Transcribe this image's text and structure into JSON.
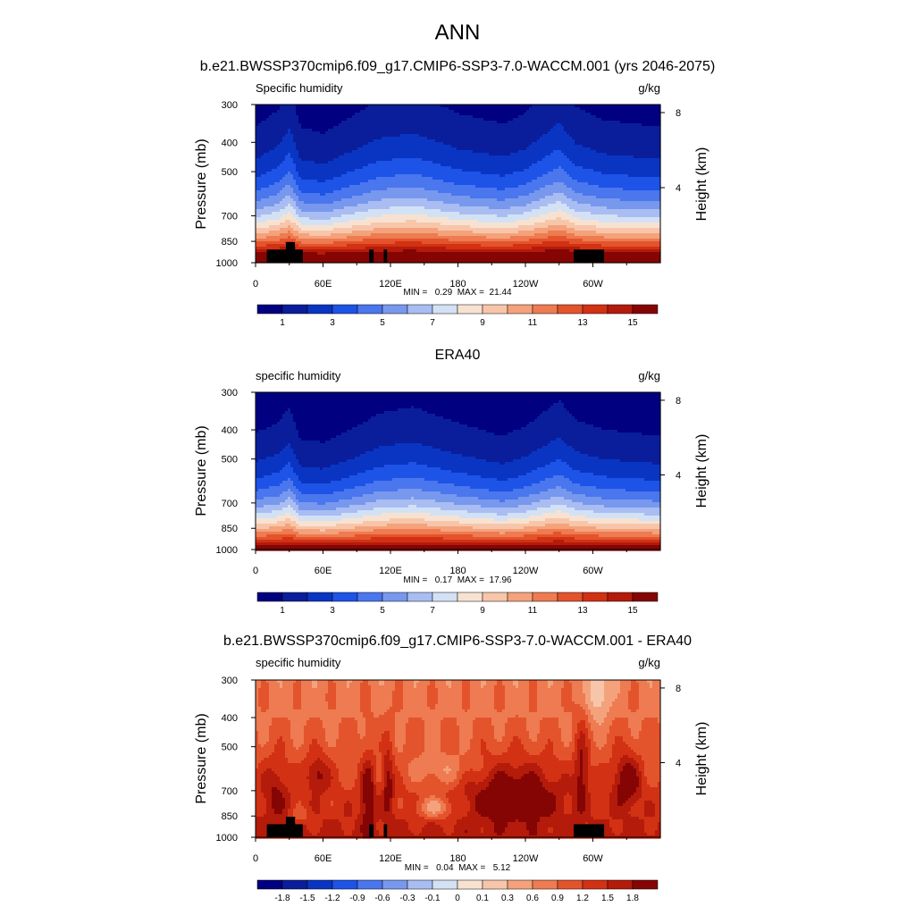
{
  "figure_title": "ANN",
  "colormap_full": [
    "#000080",
    "#0a1e9b",
    "#0a35c3",
    "#1d53e6",
    "#4a76ee",
    "#7898ee",
    "#a9bdf2",
    "#d3e1f5",
    "#f7e2d1",
    "#f7c6aa",
    "#f4a27c",
    "#ee7b51",
    "#e4542c",
    "#d23114",
    "#b41b0a",
    "#850505"
  ],
  "chart_data": [
    {
      "id": "model",
      "type": "heatmap",
      "title": "b.e21.BWSSP370cmip6.f09_g17.CMIP6-SSP3-7.0-WACCM.001 (yrs 2046-2075)",
      "left_label": "Specific humidity",
      "units": "g/kg",
      "ylabel": "Pressure (mb)",
      "y2label": "Height (km)",
      "yticks": [
        "300",
        "400",
        "500",
        "700",
        "850",
        "1000"
      ],
      "ytick_values": [
        300,
        400,
        500,
        700,
        850,
        1000
      ],
      "y2ticks": [
        "8",
        "4"
      ],
      "y2tick_values": [
        8,
        4
      ],
      "xticks": [
        "0",
        "60E",
        "120E",
        "180",
        "120W",
        "60W"
      ],
      "xtick_values": [
        0,
        60,
        120,
        180,
        240,
        300
      ],
      "xlim": [
        0,
        360
      ],
      "ylim": [
        1000,
        300
      ],
      "stats": "MIN =   0.29  MAX =  21.44",
      "min": 0.29,
      "max": 21.44,
      "levels": [
        0,
        1,
        2,
        3,
        4,
        5,
        6,
        7,
        8,
        9,
        10,
        11,
        12,
        13,
        14,
        15,
        16
      ],
      "colorbar_labels": [
        "1",
        "3",
        "5",
        "7",
        "9",
        "11",
        "13",
        "15"
      ],
      "colorbar_label_positions": [
        1,
        3,
        5,
        7,
        9,
        11,
        13,
        15
      ],
      "height_profile": [
        [
          0,
          4.0
        ],
        [
          20,
          4.5
        ],
        [
          30,
          5.2
        ],
        [
          40,
          4.0
        ],
        [
          60,
          3.8
        ],
        [
          90,
          4.4
        ],
        [
          110,
          4.8
        ],
        [
          140,
          5.0
        ],
        [
          180,
          4.4
        ],
        [
          220,
          4.1
        ],
        [
          240,
          4.4
        ],
        [
          270,
          5.4
        ],
        [
          285,
          4.6
        ],
        [
          310,
          4.2
        ],
        [
          360,
          4.0
        ]
      ],
      "terrain": [
        {
          "lon0": 10,
          "lon1": 42,
          "p": 905
        },
        {
          "lon0": 27,
          "lon1": 35,
          "p": 855
        },
        {
          "lon0": 101,
          "lon1": 105,
          "p": 905
        },
        {
          "lon0": 114,
          "lon1": 117,
          "p": 905
        },
        {
          "lon0": 283,
          "lon1": 310,
          "p": 905
        }
      ]
    },
    {
      "id": "obs",
      "type": "heatmap",
      "title": "ERA40",
      "left_label": "specific humidity",
      "units": "g/kg",
      "ylabel": "Pressure (mb)",
      "y2label": "Height (km)",
      "yticks": [
        "300",
        "400",
        "500",
        "700",
        "850",
        "1000"
      ],
      "ytick_values": [
        300,
        400,
        500,
        700,
        850,
        1000
      ],
      "y2ticks": [
        "8",
        "4"
      ],
      "y2tick_values": [
        8,
        4
      ],
      "xticks": [
        "0",
        "60E",
        "120E",
        "180",
        "120W",
        "60W"
      ],
      "xtick_values": [
        0,
        60,
        120,
        180,
        240,
        300
      ],
      "xlim": [
        0,
        360
      ],
      "ylim": [
        1000,
        300
      ],
      "stats": "MIN =   0.17  MAX =  17.96",
      "min": 0.17,
      "max": 17.96,
      "levels": [
        0,
        1,
        2,
        3,
        4,
        5,
        6,
        7,
        8,
        9,
        10,
        11,
        12,
        13,
        14,
        15,
        16
      ],
      "colorbar_labels": [
        "1",
        "3",
        "5",
        "7",
        "9",
        "11",
        "13",
        "15"
      ],
      "colorbar_label_positions": [
        1,
        3,
        5,
        7,
        9,
        11,
        13,
        15
      ],
      "height_profile": [
        [
          0,
          3.6
        ],
        [
          20,
          3.9
        ],
        [
          30,
          4.4
        ],
        [
          40,
          3.4
        ],
        [
          60,
          3.3
        ],
        [
          90,
          3.8
        ],
        [
          110,
          4.2
        ],
        [
          140,
          4.4
        ],
        [
          180,
          3.9
        ],
        [
          220,
          3.5
        ],
        [
          240,
          3.8
        ],
        [
          270,
          4.6
        ],
        [
          285,
          4.0
        ],
        [
          310,
          3.7
        ],
        [
          360,
          3.5
        ]
      ],
      "terrain": []
    },
    {
      "id": "diff",
      "type": "heatmap",
      "title": "b.e21.BWSSP370cmip6.f09_g17.CMIP6-SSP3-7.0-WACCM.001 - ERA40",
      "left_label": "specific humidity",
      "units": "g/kg",
      "ylabel": "Pressure (mb)",
      "y2label": "Height (km)",
      "yticks": [
        "300",
        "400",
        "500",
        "700",
        "850",
        "1000"
      ],
      "ytick_values": [
        300,
        400,
        500,
        700,
        850,
        1000
      ],
      "y2ticks": [
        "8",
        "4"
      ],
      "y2tick_values": [
        8,
        4
      ],
      "xticks": [
        "0",
        "60E",
        "120E",
        "180",
        "120W",
        "60W"
      ],
      "xtick_values": [
        0,
        60,
        120,
        180,
        240,
        300
      ],
      "xlim": [
        0,
        360
      ],
      "ylim": [
        1000,
        300
      ],
      "stats": "MIN =   0.04  MAX =   5.12",
      "min": 0.04,
      "max": 5.12,
      "levels": [
        -2.1,
        -1.8,
        -1.5,
        -1.2,
        -0.9,
        -0.6,
        -0.3,
        -0.1,
        0,
        0.1,
        0.3,
        0.6,
        0.9,
        1.2,
        1.5,
        1.8,
        2.1
      ],
      "colorbar_labels": [
        "-1.8",
        "-1.5",
        "-1.2",
        "-0.9",
        "-0.6",
        "-0.3",
        "-0.1",
        "0",
        "0.1",
        "0.3",
        "0.6",
        "0.9",
        "1.2",
        "1.5",
        "1.8"
      ],
      "colorbar_label_positions": [
        1,
        2,
        3,
        4,
        5,
        6,
        7,
        8,
        9,
        10,
        11,
        12,
        13,
        14,
        15
      ],
      "features": [
        {
          "lon": 18,
          "p": 700,
          "amp": 0.6,
          "sl": 12,
          "sp": 160
        },
        {
          "lon": 55,
          "p": 620,
          "amp": 0.8,
          "sl": 10,
          "sp": 90
        },
        {
          "lon": 100,
          "p": 720,
          "amp": 0.9,
          "sl": 6,
          "sp": 200
        },
        {
          "lon": 118,
          "p": 650,
          "amp": 0.8,
          "sl": 5,
          "sp": 180
        },
        {
          "lon": 160,
          "p": 800,
          "amp": -0.9,
          "sl": 18,
          "sp": 70
        },
        {
          "lon": 165,
          "p": 600,
          "amp": -0.5,
          "sl": 30,
          "sp": 80
        },
        {
          "lon": 230,
          "p": 720,
          "amp": 1.0,
          "sl": 40,
          "sp": 160
        },
        {
          "lon": 330,
          "p": 650,
          "amp": 1.0,
          "sl": 12,
          "sp": 130
        },
        {
          "lon": 290,
          "p": 600,
          "amp": 0.8,
          "sl": 6,
          "sp": 200
        },
        {
          "lon": 305,
          "p": 330,
          "amp": -0.8,
          "sl": 10,
          "sp": 80
        },
        {
          "lon": 40,
          "p": 850,
          "amp": -0.5,
          "sl": 8,
          "sp": 50
        }
      ],
      "terrain": [
        {
          "lon0": 10,
          "lon1": 42,
          "p": 905
        },
        {
          "lon0": 27,
          "lon1": 35,
          "p": 855
        },
        {
          "lon0": 101,
          "lon1": 105,
          "p": 905
        },
        {
          "lon0": 114,
          "lon1": 117,
          "p": 905
        },
        {
          "lon0": 283,
          "lon1": 310,
          "p": 905
        }
      ]
    }
  ]
}
